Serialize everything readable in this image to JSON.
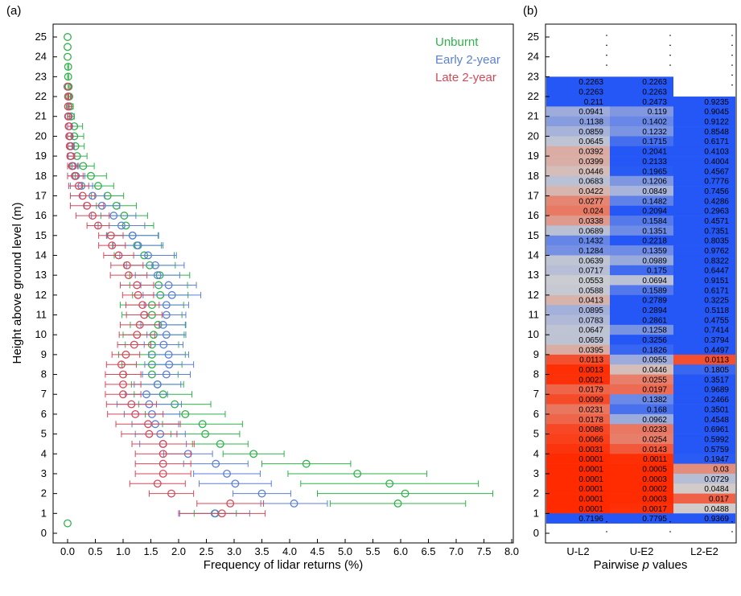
{
  "chart_data": [
    {
      "type": "scatter",
      "panel_label": "(a)",
      "xlabel": "Frequency of lidar returns (%)",
      "ylabel": "Height above ground level (m)",
      "xlim": [
        0,
        8
      ],
      "ylim": [
        0,
        25
      ],
      "x_ticks": [
        "0.0",
        "0.5",
        "1.0",
        "1.5",
        "2.0",
        "2.5",
        "3.0",
        "3.5",
        "4.0",
        "4.5",
        "5.0",
        "5.5",
        "6.0",
        "6.5",
        "7.0",
        "7.5",
        "8.0"
      ],
      "y_ticks": [
        "0",
        "1",
        "2",
        "3",
        "4",
        "5",
        "6",
        "7",
        "8",
        "9",
        "10",
        "11",
        "12",
        "13",
        "14",
        "15",
        "16",
        "17",
        "18",
        "19",
        "20",
        "21",
        "22",
        "23",
        "24",
        "25"
      ],
      "legend_position": "top-right",
      "heights": [
        0.5,
        1,
        1.5,
        2,
        2.5,
        3,
        3.5,
        4,
        4.5,
        5,
        5.5,
        6,
        6.5,
        7,
        7.5,
        8,
        8.5,
        9,
        9.5,
        10,
        10.5,
        11,
        11.5,
        12,
        12.5,
        13,
        13.5,
        14,
        14.5,
        15,
        15.5,
        16,
        16.5,
        17,
        17.5,
        18,
        18.5,
        19,
        19.5,
        20,
        20.5,
        21,
        21.5,
        22,
        22.5,
        23,
        23.5,
        24,
        24.5,
        25
      ],
      "series": [
        {
          "name": "Unburnt",
          "color": "#2fb24a",
          "mean": [
            0.0,
            2.66,
            5.95,
            6.08,
            5.8,
            5.22,
            4.3,
            3.35,
            2.75,
            2.48,
            2.43,
            2.12,
            1.93,
            1.72,
            1.62,
            1.52,
            1.52,
            1.52,
            1.52,
            1.55,
            1.63,
            1.52,
            1.52,
            1.67,
            1.64,
            1.66,
            1.48,
            1.38,
            1.25,
            1.17,
            1.05,
            1.02,
            0.88,
            0.72,
            0.55,
            0.42,
            0.28,
            0.17,
            0.14,
            0.12,
            0.12,
            0.06,
            0.04,
            0.03,
            0.02,
            0.01,
            0.01,
            0.0,
            0.0,
            0.0
          ],
          "err": [
            0.0,
            0.38,
            1.22,
            1.58,
            1.6,
            1.25,
            0.8,
            0.55,
            0.5,
            0.62,
            0.72,
            0.72,
            0.65,
            0.52,
            0.47,
            0.47,
            0.54,
            0.6,
            0.48,
            0.55,
            0.5,
            0.54,
            0.57,
            0.5,
            0.52,
            0.54,
            0.46,
            0.54,
            0.44,
            0.46,
            0.5,
            0.42,
            0.36,
            0.29,
            0.28,
            0.28,
            0.2,
            0.18,
            0.16,
            0.17,
            0.15,
            0.06,
            0.06,
            0.02,
            0.01,
            0.01,
            0.01,
            0.0,
            0.0,
            0.0
          ]
        },
        {
          "name": "Early 2-year",
          "color": "#5b7fd6",
          "mean": [
            null,
            2.65,
            4.08,
            3.5,
            3.02,
            2.87,
            2.67,
            2.17,
            1.72,
            1.67,
            1.58,
            1.52,
            1.47,
            1.42,
            1.62,
            1.78,
            1.83,
            1.82,
            1.73,
            1.78,
            1.72,
            1.78,
            1.78,
            1.88,
            1.82,
            1.62,
            1.58,
            1.45,
            1.27,
            1.17,
            0.97,
            0.83,
            0.62,
            0.45,
            0.25,
            0.15,
            0.1,
            0.06,
            0.06,
            0.04,
            0.03,
            0.02,
            0.01,
            0.01,
            0.0,
            null,
            null,
            null,
            null,
            null
          ],
          "err": [
            0.0,
            0.63,
            0.6,
            0.52,
            0.65,
            0.6,
            0.58,
            0.44,
            0.42,
            0.45,
            0.42,
            0.5,
            0.58,
            0.38,
            0.42,
            0.43,
            0.44,
            0.36,
            0.35,
            0.35,
            0.4,
            0.35,
            0.4,
            0.52,
            0.5,
            0.4,
            0.52,
            0.51,
            0.45,
            0.47,
            0.42,
            0.4,
            0.32,
            0.22,
            0.2,
            0.16,
            0.1,
            0.05,
            0.06,
            0.05,
            0.04,
            0.02,
            0.01,
            0.01,
            0.0,
            0,
            0,
            0,
            0,
            0
          ]
        },
        {
          "name": "Late 2-year",
          "color": "#d4495a",
          "mean": [
            null,
            2.78,
            2.93,
            1.87,
            1.62,
            1.72,
            1.72,
            1.72,
            1.72,
            1.47,
            1.45,
            1.22,
            1.15,
            1.0,
            1.0,
            1.0,
            0.97,
            1.05,
            1.2,
            1.25,
            1.3,
            1.38,
            1.35,
            1.27,
            1.25,
            1.1,
            1.07,
            0.92,
            0.8,
            0.78,
            0.55,
            0.45,
            0.35,
            0.27,
            0.2,
            0.13,
            0.08,
            0.05,
            0.04,
            0.03,
            0.02,
            0.01,
            0.01,
            0.01,
            0.0,
            null,
            null,
            null,
            null,
            null
          ],
          "err": [
            0.0,
            0.78,
            0.6,
            0.4,
            0.5,
            0.5,
            0.5,
            0.5,
            0.56,
            0.5,
            0.58,
            0.5,
            0.45,
            0.32,
            0.32,
            0.32,
            0.27,
            0.25,
            0.3,
            0.32,
            0.35,
            0.32,
            0.3,
            0.28,
            0.3,
            0.33,
            0.29,
            0.27,
            0.24,
            0.22,
            0.2,
            0.3,
            0.3,
            0.22,
            0.18,
            0.15,
            0.1,
            0.08,
            0.06,
            0.05,
            0.04,
            0.03,
            0.02,
            0.01,
            0.0,
            0,
            0,
            0,
            0,
            0
          ]
        }
      ]
    },
    {
      "type": "heatmap",
      "panel_label": "(b)",
      "xlabel_pre": "Pairwise ",
      "xlabel_italic": "p",
      "xlabel_post": " values",
      "columns": [
        "U-L2",
        "U-E2",
        "L2-E2"
      ],
      "y_ticks": [
        "0",
        "1",
        "2",
        "3",
        "4",
        "5",
        "6",
        "7",
        "8",
        "9",
        "10",
        "11",
        "12",
        "13",
        "14",
        "15",
        "16",
        "17",
        "18",
        "19",
        "20",
        "21",
        "22",
        "23",
        "24",
        "25"
      ],
      "color_scale": {
        "low": "#ff2a00",
        "mid": "#d0d0d0",
        "high": "#2457f5"
      },
      "rows_top_to_bottom": [
        [
          "0.2263",
          "0.2263",
          ""
        ],
        [
          "0.2263",
          "0.2263",
          ""
        ],
        [
          "0.211",
          "0.2473",
          "0.9235"
        ],
        [
          "0.0941",
          "0.119",
          "0.9045"
        ],
        [
          "0.1138",
          "0.1402",
          "0.9122"
        ],
        [
          "0.0859",
          "0.1232",
          "0.8548"
        ],
        [
          "0.0645",
          "0.1715",
          "0.6171"
        ],
        [
          "0.0392",
          "0.2041",
          "0.4103"
        ],
        [
          "0.0399",
          "0.2133",
          "0.4004"
        ],
        [
          "0.0446",
          "0.1965",
          "0.4567"
        ],
        [
          "0.0683",
          "0.1206",
          "0.7776"
        ],
        [
          "0.0422",
          "0.0849",
          "0.7456"
        ],
        [
          "0.0277",
          "0.1482",
          "0.4286"
        ],
        [
          "0.024",
          "0.2094",
          "0.2963"
        ],
        [
          "0.0338",
          "0.1584",
          "0.4571"
        ],
        [
          "0.0689",
          "0.1351",
          "0.7351"
        ],
        [
          "0.1432",
          "0.2218",
          "0.8035"
        ],
        [
          "0.1284",
          "0.1359",
          "0.9762"
        ],
        [
          "0.0639",
          "0.0989",
          "0.8322"
        ],
        [
          "0.0717",
          "0.175",
          "0.6447"
        ],
        [
          "0.0553",
          "0.0694",
          "0.9151"
        ],
        [
          "0.0588",
          "0.1589",
          "0.6171"
        ],
        [
          "0.0413",
          "0.2789",
          "0.3225"
        ],
        [
          "0.0895",
          "0.2894",
          "0.5118"
        ],
        [
          "0.0783",
          "0.2861",
          "0.4755"
        ],
        [
          "0.0647",
          "0.1258",
          "0.7414"
        ],
        [
          "0.0659",
          "0.3256",
          "0.3794"
        ],
        [
          "0.0395",
          "0.1826",
          "0.4497"
        ],
        [
          "0.0113",
          "0.0955",
          "0.0113"
        ],
        [
          "0.0013",
          "0.0446",
          "0.1805"
        ],
        [
          "0.0021",
          "0.0255",
          "0.3517"
        ],
        [
          "0.0179",
          "0.0197",
          "0.9689"
        ],
        [
          "0.0099",
          "0.1382",
          "0.2466"
        ],
        [
          "0.0231",
          "0.168",
          "0.3501"
        ],
        [
          "0.0178",
          "0.0962",
          "0.4548"
        ],
        [
          "0.0086",
          "0.0233",
          "0.6961"
        ],
        [
          "0.0066",
          "0.0254",
          "0.5992"
        ],
        [
          "0.0031",
          "0.0143",
          "0.5759"
        ],
        [
          "0.0001",
          "0.0011",
          "0.1947"
        ],
        [
          "0.0001",
          "0.0005",
          "0.03"
        ],
        [
          "0.0001",
          "0.0003",
          "0.0729"
        ],
        [
          "0.0001",
          "0.0002",
          "0.0484"
        ],
        [
          "0.0001",
          "0.0003",
          "0.017"
        ],
        [
          "0.0001",
          "0.0017",
          "0.0488"
        ],
        [
          "0.7196",
          "0.7795",
          "0.9369"
        ]
      ]
    }
  ]
}
